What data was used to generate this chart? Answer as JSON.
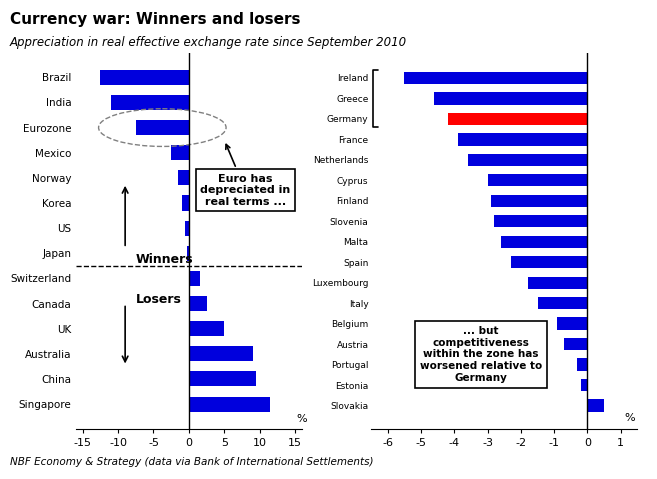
{
  "title": "Currency war: Winners and losers",
  "subtitle": "Appreciation in real effective exchange rate since September 2010",
  "footnote": "NBF Economy & Strategy (data via Bank of International Settlements)",
  "left_categories": [
    "Brazil",
    "India",
    "Eurozone",
    "Mexico",
    "Norway",
    "Korea",
    "US",
    "Japan",
    "Switzerland",
    "Canada",
    "UK",
    "Australia",
    "China",
    "Singapore"
  ],
  "left_values": [
    -12.5,
    -11.0,
    -7.5,
    -2.5,
    -1.5,
    -1.0,
    -0.5,
    -0.3,
    1.5,
    2.5,
    5.0,
    9.0,
    9.5,
    11.5
  ],
  "left_bar_color": "#0000dd",
  "left_xlim": [
    -16,
    16
  ],
  "left_xticks": [
    -15,
    -10,
    -5,
    0,
    5,
    10,
    15
  ],
  "right_categories": [
    "Ireland",
    "Greece",
    "Germany",
    "France",
    "Netherlands",
    "Cyprus",
    "Finland",
    "Slovenia",
    "Malta",
    "Spain",
    "Luxembourg",
    "Italy",
    "Belgium",
    "Austria",
    "Portugal",
    "Estonia",
    "Slovakia"
  ],
  "right_values": [
    -5.5,
    -4.6,
    -4.2,
    -3.9,
    -3.6,
    -3.0,
    -2.9,
    -2.8,
    -2.6,
    -2.3,
    -1.8,
    -1.5,
    -0.9,
    -0.7,
    -0.3,
    -0.2,
    0.5
  ],
  "right_bar_color": "#0000dd",
  "right_bar_color_germany": "#ff0000",
  "right_xlim": [
    -6.5,
    1.5
  ],
  "right_xticks": [
    -6,
    -5,
    -4,
    -3,
    -2,
    -1,
    0,
    1
  ],
  "winners_divider": 7.5,
  "bar_height": 0.6
}
